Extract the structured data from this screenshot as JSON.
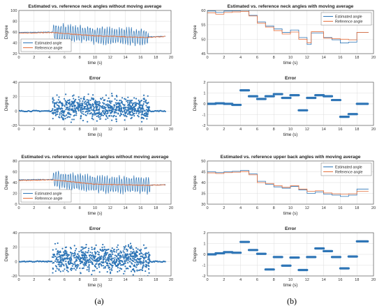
{
  "labels": {
    "a": "(a)",
    "b": "(b)"
  },
  "colors": {
    "estimated": "#2e75b6",
    "reference": "#e46f3c",
    "error": "#2e75b6",
    "grid": "#dcdcdc"
  },
  "chart_data": [
    {
      "id": "neck_raw",
      "type": "line",
      "title": "Estimated vs. reference neck angles without moving average",
      "xlabel": "time (s)",
      "ylabel": "Degree",
      "xlim": [
        0,
        20
      ],
      "ylim": [
        20,
        100
      ],
      "xticks": [
        0,
        2,
        4,
        6,
        8,
        10,
        12,
        14,
        16,
        18,
        20
      ],
      "yticks": [
        20,
        40,
        60,
        80,
        100
      ],
      "grid": true,
      "legend_position": "bottom-left",
      "series": [
        {
          "name": "Estimated angle",
          "pattern": "oscillating",
          "base": [
            [
              0,
              59
            ],
            [
              4.5,
              60
            ],
            [
              10,
              54
            ],
            [
              17,
              51
            ],
            [
              19.3,
              52
            ]
          ],
          "amplitude": 18,
          "active": [
            4.5,
            17
          ],
          "period": 0.32
        },
        {
          "name": "Reference angle",
          "pattern": "smooth",
          "base": [
            [
              0,
              58
            ],
            [
              4.5,
              59
            ],
            [
              10,
              53
            ],
            [
              17,
              50
            ],
            [
              19.3,
              52
            ]
          ]
        }
      ]
    },
    {
      "id": "neck_ma",
      "type": "line",
      "title": "Estimated vs. reference neck angles with moving average",
      "xlabel": "time (s)",
      "ylabel": "Degree",
      "xlim": [
        0,
        20
      ],
      "ylim": [
        45,
        60
      ],
      "xticks": [
        0,
        2,
        4,
        6,
        8,
        10,
        12,
        14,
        16,
        18,
        20
      ],
      "yticks": [
        45,
        50,
        55,
        60
      ],
      "grid": true,
      "legend_position": "top-right",
      "series": [
        {
          "name": "Estimated angle",
          "pattern": "step",
          "points": [
            [
              0,
              59.8
            ],
            [
              1,
              59.3
            ],
            [
              2,
              59.8
            ],
            [
              3,
              59.9
            ],
            [
              4,
              60.0
            ],
            [
              5,
              58.3
            ],
            [
              6,
              56.0
            ],
            [
              7,
              54.6
            ],
            [
              8,
              53.6
            ],
            [
              9,
              52.4
            ],
            [
              10,
              53.2
            ],
            [
              11,
              50.6
            ],
            [
              12,
              48.2
            ],
            [
              12.5,
              52.2
            ],
            [
              14,
              50.6
            ],
            [
              15,
              49.8
            ],
            [
              16,
              48.7
            ],
            [
              17,
              49.0
            ],
            [
              18,
              52.4
            ],
            [
              19.3,
              52.4
            ]
          ]
        },
        {
          "name": "Reference angle",
          "pattern": "step",
          "points": [
            [
              0,
              59.2
            ],
            [
              1,
              58.7
            ],
            [
              2,
              59.3
            ],
            [
              3,
              59.5
            ],
            [
              4,
              59.6
            ],
            [
              5,
              58.1
            ],
            [
              6,
              55.6
            ],
            [
              7,
              54.2
            ],
            [
              8,
              53.0
            ],
            [
              9,
              51.8
            ],
            [
              10,
              52.5
            ],
            [
              11,
              50.0
            ],
            [
              12,
              48.8
            ],
            [
              12.5,
              52.6
            ],
            [
              14,
              50.4
            ],
            [
              15,
              50.2
            ],
            [
              16,
              50.0
            ],
            [
              17,
              49.8
            ],
            [
              18,
              52.4
            ],
            [
              19.3,
              52.4
            ]
          ]
        }
      ]
    },
    {
      "id": "neck_raw_err",
      "type": "scatter",
      "title": "Error",
      "xlabel": "time (s)",
      "ylabel": "Degree",
      "xlim": [
        0,
        20
      ],
      "ylim": [
        -20,
        40
      ],
      "xticks": [
        0,
        2,
        4,
        6,
        8,
        10,
        12,
        14,
        16,
        18,
        20
      ],
      "yticks": [
        -20,
        0,
        20,
        40
      ],
      "grid": true,
      "series": [
        {
          "name": "Error",
          "pattern": "scatter",
          "quiet": [
            0,
            4.4
          ],
          "quiet2": [
            17.2,
            19.3
          ],
          "spread": [
            -15,
            30
          ],
          "active": [
            4.4,
            17.2
          ],
          "density": 60
        }
      ]
    },
    {
      "id": "neck_ma_err",
      "type": "scatter",
      "title": "Error",
      "xlabel": "time (s)",
      "ylabel": "Degree",
      "xlim": [
        0,
        20
      ],
      "ylim": [
        -2,
        2
      ],
      "xticks": [
        0,
        2,
        4,
        6,
        8,
        10,
        12,
        14,
        16,
        18,
        20
      ],
      "yticks": [
        -2,
        -1,
        0,
        1,
        2
      ],
      "grid": true,
      "series": [
        {
          "name": "Error",
          "pattern": "segments",
          "segments": [
            [
              0,
              1,
              0.0
            ],
            [
              1,
              2,
              0.05
            ],
            [
              2,
              3,
              0.0
            ],
            [
              3,
              4,
              -0.1
            ],
            [
              4,
              5,
              1.25
            ],
            [
              5,
              6,
              0.7
            ],
            [
              6,
              7,
              0.45
            ],
            [
              7,
              8,
              0.7
            ],
            [
              8,
              9,
              0.9
            ],
            [
              9,
              10,
              0.55
            ],
            [
              10,
              11,
              0.8
            ],
            [
              11,
              12,
              -0.6
            ],
            [
              12,
              13,
              0.55
            ],
            [
              13,
              14,
              0.8
            ],
            [
              14,
              15,
              0.7
            ],
            [
              15,
              16,
              0.35
            ],
            [
              16,
              17,
              -1.2
            ],
            [
              17,
              18,
              -0.95
            ],
            [
              18,
              19.3,
              0.0
            ]
          ]
        }
      ]
    },
    {
      "id": "back_raw",
      "type": "line",
      "title": "Estimated vs. reference upper back angles without moving average",
      "xlabel": "time (s)",
      "ylabel": "Degree",
      "xlim": [
        0,
        20
      ],
      "ylim": [
        0,
        80
      ],
      "xticks": [
        0,
        2,
        4,
        6,
        8,
        10,
        12,
        14,
        16,
        18,
        20
      ],
      "yticks": [
        0,
        20,
        40,
        60,
        80
      ],
      "grid": true,
      "legend_position": "bottom-left",
      "series": [
        {
          "name": "Estimated angle",
          "pattern": "oscillating",
          "base": [
            [
              0,
              45
            ],
            [
              4.5,
              46
            ],
            [
              10,
              37
            ],
            [
              17,
              35
            ],
            [
              19.3,
              36
            ]
          ],
          "amplitude": 18,
          "active": [
            4.5,
            17.2
          ],
          "period": 0.32
        },
        {
          "name": "Reference angle",
          "pattern": "smooth",
          "base": [
            [
              0,
              44
            ],
            [
              4.5,
              45
            ],
            [
              10,
              37
            ],
            [
              17,
              35
            ],
            [
              19.3,
              36
            ]
          ]
        }
      ]
    },
    {
      "id": "back_ma",
      "type": "line",
      "title": "Estimated vs. reference upper back angles with moving average",
      "xlabel": "time (s)",
      "ylabel": "Degree",
      "xlim": [
        0,
        20
      ],
      "ylim": [
        30,
        50
      ],
      "xticks": [
        0,
        2,
        4,
        6,
        8,
        10,
        12,
        14,
        16,
        18,
        20
      ],
      "yticks": [
        30,
        35,
        40,
        45,
        50
      ],
      "grid": true,
      "legend_position": "top-right",
      "series": [
        {
          "name": "Estimated angle",
          "pattern": "step",
          "points": [
            [
              0,
              45.0
            ],
            [
              1,
              44.6
            ],
            [
              2,
              45.0
            ],
            [
              3,
              45.2
            ],
            [
              4,
              45.6
            ],
            [
              5,
              44.0
            ],
            [
              6,
              40.6
            ],
            [
              7,
              39.2
            ],
            [
              8,
              38.0
            ],
            [
              9,
              37.4
            ],
            [
              10,
              38.2
            ],
            [
              11,
              36.6
            ],
            [
              12,
              35.0
            ],
            [
              13,
              35.6
            ],
            [
              14,
              34.6
            ],
            [
              15,
              34.2
            ],
            [
              16,
              33.6
            ],
            [
              17,
              34.2
            ],
            [
              18,
              37.0
            ],
            [
              19.3,
              37.0
            ]
          ]
        },
        {
          "name": "Reference angle",
          "pattern": "step",
          "points": [
            [
              0,
              44.5
            ],
            [
              1,
              44.2
            ],
            [
              2,
              44.6
            ],
            [
              3,
              44.8
            ],
            [
              4,
              45.1
            ],
            [
              5,
              43.6
            ],
            [
              6,
              40.0
            ],
            [
              7,
              39.6
            ],
            [
              8,
              38.6
            ],
            [
              9,
              37.8
            ],
            [
              10,
              38.6
            ],
            [
              11,
              37.0
            ],
            [
              12,
              36.0
            ],
            [
              13,
              36.2
            ],
            [
              14,
              35.2
            ],
            [
              15,
              34.8
            ],
            [
              16,
              34.6
            ],
            [
              17,
              34.8
            ],
            [
              18,
              36.0
            ],
            [
              19.3,
              36.0
            ]
          ]
        }
      ]
    },
    {
      "id": "back_raw_err",
      "type": "scatter",
      "title": "Error",
      "xlabel": "time (s)",
      "ylabel": "Degree",
      "xlim": [
        0,
        20
      ],
      "ylim": [
        -20,
        40
      ],
      "xticks": [
        0,
        2,
        4,
        6,
        8,
        10,
        12,
        14,
        16,
        18,
        20
      ],
      "yticks": [
        -20,
        0,
        20,
        40
      ],
      "grid": true,
      "series": [
        {
          "name": "Error",
          "pattern": "scatter",
          "quiet": [
            0,
            4.4
          ],
          "quiet2": [
            17.2,
            19.3
          ],
          "spread": [
            -19,
            34
          ],
          "active": [
            4.4,
            17.2
          ],
          "density": 60
        }
      ]
    },
    {
      "id": "back_ma_err",
      "type": "scatter",
      "title": "Error",
      "xlabel": "time (s)",
      "ylabel": "Degree",
      "xlim": [
        0,
        20
      ],
      "ylim": [
        -2,
        2
      ],
      "xticks": [
        0,
        2,
        4,
        6,
        8,
        10,
        12,
        14,
        16,
        18,
        20
      ],
      "yticks": [
        -2,
        -1,
        0,
        1,
        2
      ],
      "grid": true,
      "series": [
        {
          "name": "Error",
          "pattern": "segments",
          "segments": [
            [
              0,
              1,
              0.0
            ],
            [
              1,
              2,
              0.1
            ],
            [
              2,
              3,
              0.2
            ],
            [
              3,
              4,
              0.15
            ],
            [
              4,
              5,
              1.15
            ],
            [
              5,
              6,
              0.4
            ],
            [
              6,
              7,
              0.05
            ],
            [
              7,
              8,
              -1.4
            ],
            [
              8,
              9,
              -0.25
            ],
            [
              9,
              10,
              -1.05
            ],
            [
              10,
              11,
              -0.3
            ],
            [
              11,
              12,
              -1.45
            ],
            [
              12,
              13,
              -0.25
            ],
            [
              13,
              14,
              0.55
            ],
            [
              14,
              15,
              0.3
            ],
            [
              15,
              16,
              -0.25
            ],
            [
              16,
              17,
              -1.3
            ],
            [
              17,
              18,
              -0.2
            ],
            [
              18,
              19.3,
              1.2
            ]
          ]
        }
      ]
    }
  ]
}
